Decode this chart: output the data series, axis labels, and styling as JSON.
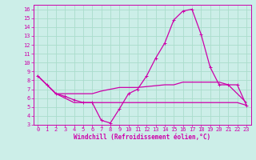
{
  "xlabel": "Windchill (Refroidissement éolien,°C)",
  "bg_color": "#cceee8",
  "grid_color": "#aaddcc",
  "line_color": "#cc00aa",
  "xlim": [
    -0.5,
    23.5
  ],
  "ylim": [
    3,
    16.5
  ],
  "xticks": [
    0,
    1,
    2,
    3,
    4,
    5,
    6,
    7,
    8,
    9,
    10,
    11,
    12,
    13,
    14,
    15,
    16,
    17,
    18,
    19,
    20,
    21,
    22,
    23
  ],
  "yticks": [
    3,
    4,
    5,
    6,
    7,
    8,
    9,
    10,
    11,
    12,
    13,
    14,
    15,
    16
  ],
  "lines": [
    {
      "x": [
        0,
        1,
        2,
        3,
        4,
        5,
        6,
        7,
        8,
        9,
        10,
        11,
        12,
        13,
        14,
        15,
        16,
        17,
        18,
        19,
        20,
        21,
        22,
        23
      ],
      "y": [
        8.5,
        7.5,
        6.5,
        6.2,
        5.8,
        5.5,
        5.5,
        3.5,
        3.2,
        4.8,
        6.5,
        7.0,
        8.5,
        10.5,
        12.2,
        14.8,
        15.8,
        16.0,
        13.2,
        9.5,
        7.5,
        7.5,
        7.5,
        5.2
      ],
      "marker": true
    },
    {
      "x": [
        0,
        1,
        2,
        3,
        4,
        5,
        6,
        7,
        8,
        9,
        10,
        11,
        12,
        13,
        14,
        15,
        16,
        17,
        18,
        19,
        20,
        21,
        22,
        23
      ],
      "y": [
        8.5,
        7.5,
        6.5,
        6.5,
        6.5,
        6.5,
        6.5,
        6.8,
        7.0,
        7.2,
        7.2,
        7.2,
        7.3,
        7.4,
        7.5,
        7.5,
        7.8,
        7.8,
        7.8,
        7.8,
        7.8,
        7.5,
        6.5,
        5.5
      ],
      "marker": false
    },
    {
      "x": [
        0,
        1,
        2,
        3,
        4,
        5,
        6,
        7,
        8,
        9,
        10,
        11,
        12,
        13,
        14,
        15,
        16,
        17,
        18,
        19,
        20,
        21,
        22,
        23
      ],
      "y": [
        8.5,
        7.5,
        6.5,
        6.0,
        5.5,
        5.5,
        5.5,
        5.5,
        5.5,
        5.5,
        5.5,
        5.5,
        5.5,
        5.5,
        5.5,
        5.5,
        5.5,
        5.5,
        5.5,
        5.5,
        5.5,
        5.5,
        5.5,
        5.2
      ],
      "marker": false
    }
  ],
  "tick_fontsize": 5.0,
  "xlabel_fontsize": 5.5,
  "linewidth": 0.9
}
